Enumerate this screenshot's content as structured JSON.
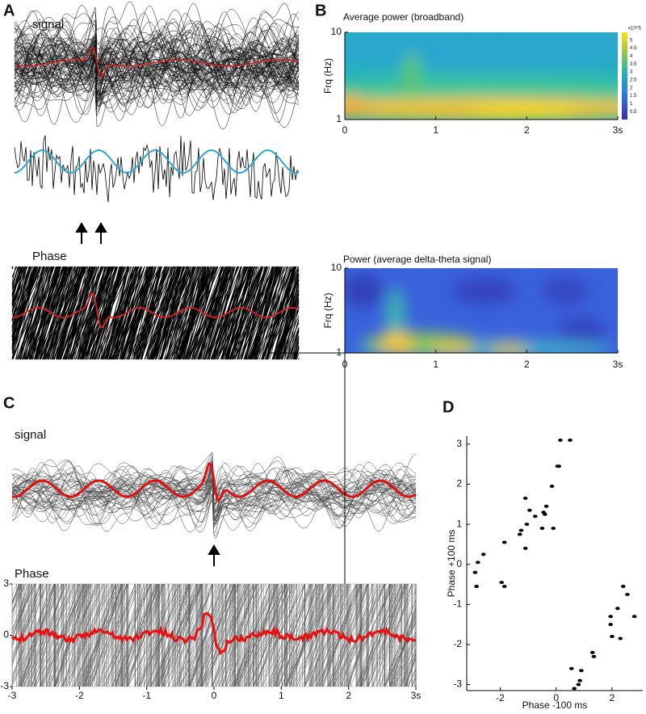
{
  "chart_data": [
    {
      "type": "traces",
      "panel_label": "A",
      "title": "signal"
    },
    {
      "type": "phase",
      "title": "Phase"
    },
    {
      "type": "heatmap",
      "panel_label": "B",
      "title": "Average power (broadband)",
      "y_label": "Frq (Hz)",
      "xlim": [
        0,
        3
      ],
      "xticks": [
        0,
        1,
        2,
        {
          "value": 3,
          "label": "3s"
        }
      ],
      "ylim": [
        1,
        10
      ],
      "yticks": [
        1,
        10
      ],
      "log_y": true,
      "colorbar": {
        "label": "x10^5",
        "lim": [
          0,
          5.5
        ],
        "ticks": [
          0.5,
          1,
          1.5,
          2,
          2.5,
          3,
          3.5,
          4,
          4.5,
          5
        ]
      }
    },
    {
      "type": "heatmap",
      "title": "Power (average delta-theta signal)",
      "y_label": "Frq (Hz)",
      "xlim": [
        0,
        3
      ],
      "xticks": [
        0,
        1,
        2,
        {
          "value": 3,
          "label": "3s"
        }
      ],
      "ylim": [
        1,
        10
      ],
      "yticks": [
        1,
        10
      ],
      "log_y": true
    },
    {
      "type": "traces",
      "panel_label": "C",
      "title": "signal"
    },
    {
      "type": "phase",
      "title": "Phase",
      "xlim": [
        -3,
        3
      ],
      "xticks": [
        -3,
        -2,
        -1,
        0,
        1,
        2,
        {
          "value": 3,
          "label": "3s"
        }
      ],
      "ylim": [
        -3,
        3
      ],
      "yticks": [
        -3,
        0,
        3
      ]
    },
    {
      "type": "scatter",
      "panel_label": "D",
      "x_label": "Phase -100 ms",
      "y_label": "Phase +100 ms",
      "color": "#000000",
      "xlim": [
        -3.2,
        3.1
      ],
      "ylim": [
        -3.15,
        3.2
      ],
      "xticks": [
        -2,
        0,
        2
      ],
      "yticks": [
        -3,
        -2,
        -1,
        0,
        1,
        2,
        3
      ],
      "x": [
        -2.9,
        -2.8,
        -2.6,
        -2.85,
        -1.95,
        -1.85,
        -1.85,
        -1.1,
        -0.95,
        -1.25,
        -1.3,
        -1.05,
        -1.1,
        -0.75,
        -0.5,
        -0.45,
        -0.35,
        -0.4,
        -0.15,
        -0.1,
        0.05,
        0.1,
        0.15,
        0.5,
        0.55,
        0.65,
        0.8,
        0.85,
        0.9,
        1.3,
        1.35,
        1.95,
        1.95,
        2.0,
        2.2,
        2.3,
        2.4,
        2.55,
        2.8
      ],
      "y": [
        -0.2,
        0.05,
        0.25,
        -0.55,
        -0.45,
        -0.55,
        0.55,
        1.65,
        1.35,
        0.85,
        0.75,
        1.0,
        0.4,
        1.2,
        0.9,
        1.3,
        1.45,
        1.25,
        1.95,
        0.9,
        2.45,
        2.45,
        3.1,
        3.1,
        -2.6,
        -3.1,
        -3.0,
        -2.9,
        -2.65,
        -2.2,
        -2.3,
        -1.3,
        -1.5,
        -1.8,
        -1.1,
        -1.85,
        -0.55,
        -0.75,
        -1.3
      ]
    }
  ]
}
